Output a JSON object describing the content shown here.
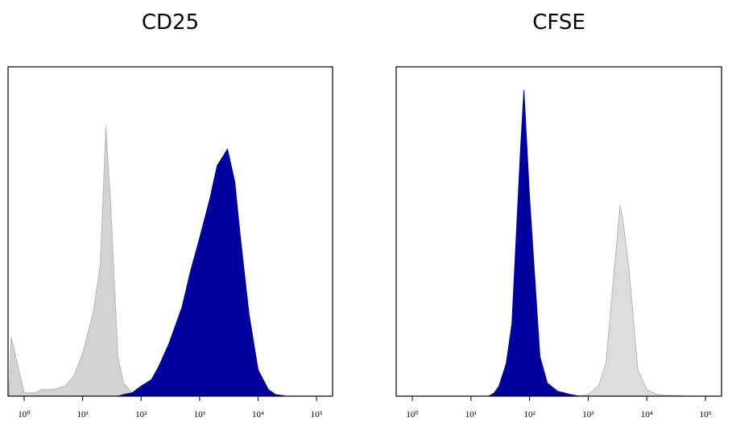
{
  "chart_data": [
    {
      "type": "area",
      "title": "CD25",
      "xscale": "log",
      "xlim": [
        0.53,
        188000
      ],
      "ylim": [
        0,
        100
      ],
      "xticks": [
        {
          "value": 1,
          "label": "10⁰"
        },
        {
          "value": 10,
          "label": "10¹"
        },
        {
          "value": 100,
          "label": "10²"
        },
        {
          "value": 1000,
          "label": "10³"
        },
        {
          "value": 10000,
          "label": "10⁴"
        },
        {
          "value": 100000,
          "label": "10⁵"
        }
      ],
      "x": [
        0.55,
        0.6,
        1,
        1.5,
        2,
        3,
        5,
        7,
        10,
        15,
        20,
        25,
        30,
        40,
        50,
        70,
        100,
        150,
        200,
        300,
        500,
        700,
        1000,
        1500,
        2000,
        3000,
        4000,
        5000,
        7000,
        10000,
        15000,
        20000,
        30000,
        50000,
        100000,
        180000
      ],
      "series": [
        {
          "color": "#d2d2d2",
          "values": [
            0,
            18,
            1,
            1,
            2,
            2,
            3,
            6,
            13,
            25,
            40,
            82,
            59,
            12,
            4,
            1,
            0.5,
            0,
            0,
            0,
            0,
            0,
            0,
            0,
            0,
            0,
            0,
            0,
            0,
            0,
            0,
            0,
            0,
            0,
            0,
            0
          ]
        },
        {
          "color": "#00009c",
          "values": [
            0,
            0,
            0,
            0,
            0,
            0,
            0,
            0,
            0,
            0,
            0,
            0,
            0,
            0,
            0.5,
            1,
            3,
            5,
            9,
            16,
            27,
            38,
            48,
            60,
            70,
            75,
            65,
            48,
            25,
            8,
            2,
            0.5,
            0,
            0,
            0,
            0
          ]
        }
      ]
    },
    {
      "type": "area",
      "title": "CFSE",
      "xscale": "log",
      "xlim": [
        0.53,
        188000
      ],
      "ylim": [
        0,
        100
      ],
      "xticks": [
        {
          "value": 1,
          "label": "10⁰"
        },
        {
          "value": 10,
          "label": "10¹"
        },
        {
          "value": 100,
          "label": "10²"
        },
        {
          "value": 1000,
          "label": "10³"
        },
        {
          "value": 10000,
          "label": "10⁴"
        },
        {
          "value": 100000,
          "label": "10⁵"
        }
      ],
      "x": [
        0.6,
        1,
        5,
        10,
        20,
        25,
        30,
        40,
        50,
        70,
        80,
        100,
        150,
        200,
        300,
        500,
        700,
        1000,
        1500,
        2000,
        3000,
        3500,
        4000,
        5000,
        7000,
        10000,
        15000,
        20000,
        50000,
        180000
      ],
      "series": [
        {
          "color": "#00009c",
          "values": [
            0,
            0,
            0,
            0,
            0,
            1,
            3,
            10,
            22,
            75,
            93,
            60,
            12,
            4,
            1.5,
            0.5,
            0,
            0,
            0,
            0,
            0,
            0,
            0,
            0,
            0,
            0,
            0,
            0,
            0,
            0
          ]
        },
        {
          "color": "#dcdcdc",
          "values": [
            0,
            0,
            0,
            0,
            0,
            0,
            0,
            0,
            0,
            0,
            0,
            0,
            0,
            0,
            0,
            0,
            0,
            0.5,
            3,
            10,
            45,
            58,
            52,
            38,
            8,
            2,
            0.5,
            0.3,
            0,
            0
          ]
        }
      ]
    }
  ]
}
